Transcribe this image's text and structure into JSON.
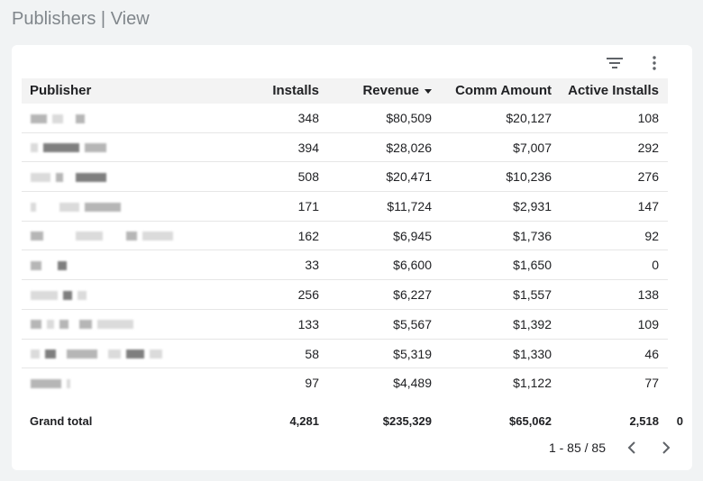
{
  "page": {
    "title": "Publishers | View"
  },
  "toolbar": {
    "filter_icon": "filter-icon",
    "more_icon": "more-vert-icon"
  },
  "table": {
    "headers": {
      "publisher": "Publisher",
      "installs": "Installs",
      "revenue": "Revenue",
      "comm_amount": "Comm Amount",
      "active_installs": "Active Installs"
    },
    "rows": [
      {
        "installs": "348",
        "revenue": "$80,509",
        "comm_amount": "$20,127",
        "active_installs": "108"
      },
      {
        "installs": "394",
        "revenue": "$28,026",
        "comm_amount": "$7,007",
        "active_installs": "292"
      },
      {
        "installs": "508",
        "revenue": "$20,471",
        "comm_amount": "$10,236",
        "active_installs": "276"
      },
      {
        "installs": "171",
        "revenue": "$11,724",
        "comm_amount": "$2,931",
        "active_installs": "147"
      },
      {
        "installs": "162",
        "revenue": "$6,945",
        "comm_amount": "$1,736",
        "active_installs": "92"
      },
      {
        "installs": "33",
        "revenue": "$6,600",
        "comm_amount": "$1,650",
        "active_installs": "0"
      },
      {
        "installs": "256",
        "revenue": "$6,227",
        "comm_amount": "$1,557",
        "active_installs": "138"
      },
      {
        "installs": "133",
        "revenue": "$5,567",
        "comm_amount": "$1,392",
        "active_installs": "109"
      },
      {
        "installs": "58",
        "revenue": "$5,319",
        "comm_amount": "$1,330",
        "active_installs": "46"
      },
      {
        "installs": "97",
        "revenue": "$4,489",
        "comm_amount": "$1,122",
        "active_installs": "77"
      }
    ],
    "grand_total": {
      "label": "Grand total",
      "installs": "4,281",
      "revenue": "$235,329",
      "comm_amount": "$65,062",
      "active_installs": "2,518",
      "extra": "0"
    }
  },
  "pagination": {
    "range": "1 - 85 / 85"
  }
}
